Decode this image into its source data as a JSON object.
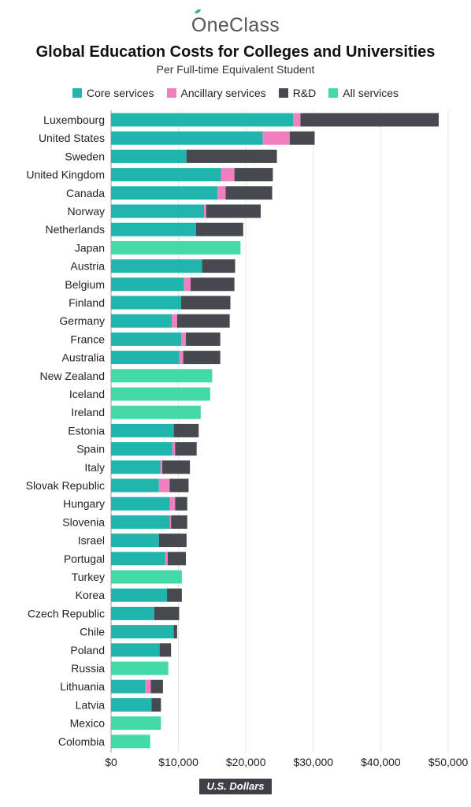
{
  "brand": {
    "name": "OneClass"
  },
  "chart_data": {
    "type": "bar",
    "orientation": "horizontal",
    "stacked": true,
    "title": "Global Education Costs for Colleges and Universities",
    "subtitle": "Per Full-time Equivalent Student",
    "xlabel": "U.S. Dollars",
    "xlim": [
      0,
      50000
    ],
    "xticks": [
      "$0",
      "$10,000",
      "$20,000",
      "$30,000",
      "$40,000",
      "$50,000"
    ],
    "grid": "vertical",
    "legend_position": "top",
    "colors": {
      "Core services": "#1fb5ac",
      "Ancillary services": "#ef7fbf",
      "R&D": "#464a50",
      "All services": "#43d9a8"
    },
    "categories": [
      "Luxembourg",
      "United States",
      "Sweden",
      "United Kingdom",
      "Canada",
      "Norway",
      "Netherlands",
      "Japan",
      "Austria",
      "Belgium",
      "Finland",
      "Germany",
      "France",
      "Australia",
      "New Zealand",
      "Iceland",
      "Ireland",
      "Estonia",
      "Spain",
      "Italy",
      "Slovak Republic",
      "Hungary",
      "Slovenia",
      "Israel",
      "Portugal",
      "Turkey",
      "Korea",
      "Czech Republic",
      "Chile",
      "Poland",
      "Russia",
      "Lithuania",
      "Latvia",
      "Mexico",
      "Colombia"
    ],
    "series": [
      {
        "name": "Core services",
        "values": [
          27000,
          22500,
          11200,
          16300,
          15800,
          13800,
          12600,
          null,
          13500,
          10800,
          10400,
          9000,
          10400,
          10100,
          null,
          null,
          null,
          9300,
          9100,
          7300,
          7100,
          8700,
          8700,
          7100,
          8000,
          null,
          8300,
          6400,
          9300,
          7200,
          null,
          5100,
          6000,
          null,
          null
        ]
      },
      {
        "name": "Ancillary services",
        "values": [
          1100,
          4000,
          0,
          2000,
          1200,
          300,
          0,
          null,
          0,
          1000,
          0,
          800,
          700,
          600,
          null,
          null,
          null,
          0,
          400,
          300,
          1600,
          800,
          200,
          0,
          400,
          null,
          0,
          0,
          0,
          0,
          null,
          800,
          0,
          null,
          null
        ]
      },
      {
        "name": "R&D",
        "values": [
          20500,
          3700,
          13400,
          5700,
          6900,
          8100,
          7000,
          null,
          4900,
          6500,
          7300,
          7800,
          5100,
          5500,
          null,
          null,
          null,
          3700,
          3200,
          4100,
          2800,
          1800,
          2400,
          4100,
          2700,
          null,
          2200,
          3700,
          500,
          1700,
          null,
          1800,
          1400,
          null,
          null
        ]
      },
      {
        "name": "All services",
        "values": [
          null,
          null,
          null,
          null,
          null,
          null,
          null,
          19200,
          null,
          null,
          null,
          null,
          null,
          null,
          15000,
          14700,
          13300,
          null,
          null,
          null,
          null,
          null,
          null,
          null,
          null,
          10500,
          null,
          null,
          null,
          null,
          8500,
          null,
          null,
          7400,
          5800
        ]
      }
    ]
  }
}
